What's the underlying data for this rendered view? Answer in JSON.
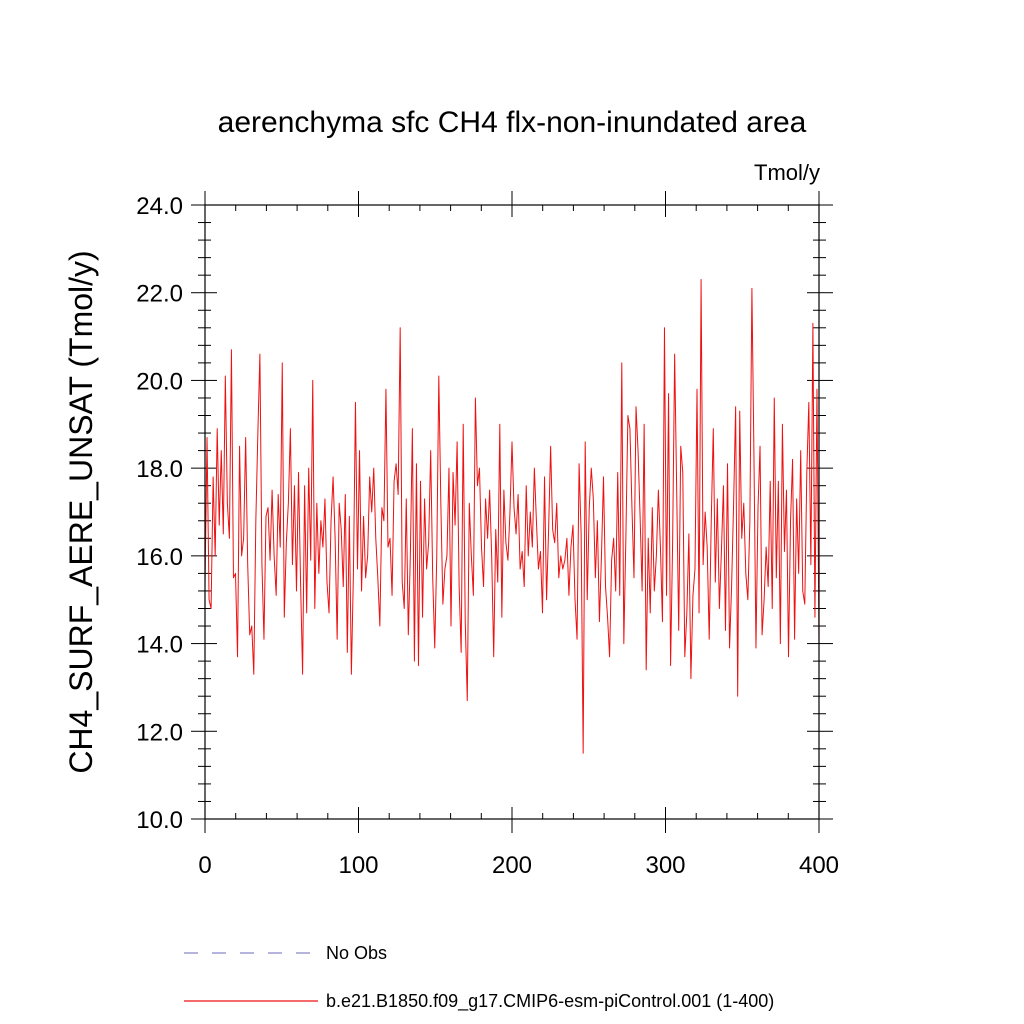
{
  "chart_data": {
    "type": "line",
    "title": "aerenchyma sfc CH4 flx-non-inundated area",
    "units_label": "Tmol/y",
    "ylabel": "CH4_SURF_AERE_UNSAT  (Tmol/y)",
    "xlabel": "",
    "xlim": [
      0,
      400
    ],
    "ylim": [
      10,
      24
    ],
    "x_ticks": [
      "0",
      "100",
      "200",
      "300",
      "400"
    ],
    "y_ticks": [
      "10.0",
      "12.0",
      "14.0",
      "16.0",
      "18.0",
      "20.0",
      "22.0",
      "24.0"
    ],
    "grid": false,
    "legend_placement": "bottom",
    "colors": {
      "model": "#ee1111",
      "obs": "#8888cc",
      "axis": "#000000"
    },
    "series": [
      {
        "name": "b.e21.B1850.f09_g17.CMIP6-esm-piControl.001 (1-400)",
        "style": "solid",
        "values": [
          15.3,
          18.7,
          15.0,
          14.8,
          17.8,
          16.0,
          18.9,
          16.7,
          18.4,
          16.5,
          20.1,
          17.2,
          16.4,
          20.7,
          15.5,
          15.6,
          13.7,
          18.5,
          16.0,
          16.4,
          18.7,
          15.8,
          14.2,
          14.4,
          13.3,
          16.8,
          18.8,
          20.6,
          15.8,
          14.1,
          16.9,
          17.1,
          15.9,
          17.5,
          16.0,
          15.1,
          17.4,
          16.2,
          20.4,
          14.6,
          16.3,
          17.2,
          18.9,
          15.8,
          17.6,
          15.2,
          17.9,
          15.4,
          13.3,
          17.6,
          14.7,
          18.0,
          15.9,
          20.0,
          14.8,
          17.2,
          15.6,
          16.8,
          16.2,
          17.3,
          15.4,
          14.7,
          16.8,
          17.8,
          16.4,
          14.1,
          17.2,
          16.6,
          15.3,
          17.4,
          13.8,
          16.9,
          13.3,
          15.6,
          19.5,
          15.7,
          18.4,
          15.2,
          16.9,
          15.5,
          16.0,
          17.8,
          17.0,
          18.0,
          16.4,
          15.5,
          14.4,
          17.1,
          16.8,
          19.8,
          16.2,
          16.4,
          15.1,
          17.7,
          18.1,
          17.4,
          21.2,
          15.4,
          14.8,
          17.3,
          14.2,
          16.0,
          18.9,
          13.6,
          18.1,
          13.5,
          17.7,
          14.6,
          17.3,
          15.7,
          16.3,
          18.4,
          15.5,
          13.9,
          16.0,
          20.1,
          17.2,
          14.9,
          15.7,
          16.0,
          18.0,
          14.4,
          17.9,
          16.7,
          18.6,
          15.3,
          13.8,
          19.0,
          14.5,
          12.7,
          17.2,
          16.0,
          15.1,
          19.6,
          17.6,
          18.0,
          16.2,
          15.3,
          17.3,
          16.4,
          17.5,
          16.0,
          13.7,
          16.6,
          15.4,
          19.0,
          14.6,
          17.5,
          16.3,
          15.9,
          17.0,
          18.6,
          17.1,
          16.5,
          17.4,
          15.7,
          16.1,
          15.3,
          17.6,
          16.0,
          17.0,
          16.2,
          18.0,
          16.8,
          15.7,
          16.1,
          14.7,
          17.8,
          15.0,
          16.6,
          18.5,
          16.6,
          16.3,
          17.2,
          15.5,
          16.0,
          15.7,
          15.9,
          16.4,
          15.1,
          16.2,
          16.7,
          15.0,
          14.1,
          18.1,
          16.5,
          11.5,
          18.6,
          15.0,
          17.1,
          18.0,
          17.3,
          15.5,
          16.8,
          14.5,
          16.0,
          17.8,
          15.3,
          14.6,
          13.7,
          15.9,
          16.4,
          15.2,
          17.9,
          15.1,
          20.4,
          14.0,
          16.4,
          19.2,
          18.9,
          17.1,
          15.5,
          19.4,
          18.4,
          16.9,
          15.2,
          19.0,
          13.4,
          16.4,
          14.7,
          17.1,
          15.2,
          16.0,
          17.5,
          16.2,
          14.5,
          21.2,
          15.1,
          19.7,
          13.5,
          16.3,
          20.6,
          17.5,
          14.3,
          18.5,
          17.9,
          13.7,
          14.7,
          16.5,
          13.2,
          15.1,
          15.7,
          19.8,
          14.7,
          22.3,
          15.8,
          17.0,
          16.2,
          14.1,
          16.8,
          18.9,
          15.4,
          17.3,
          14.8,
          16.1,
          17.6,
          14.3,
          18.1,
          13.9,
          15.3,
          17.2,
          19.4,
          12.8,
          19.3,
          16.4,
          17.2,
          15.6,
          15.0,
          16.8,
          22.1,
          18.3,
          13.9,
          17.1,
          18.5,
          14.2,
          15.0,
          16.2,
          15.3,
          17.7,
          14.8,
          19.6,
          15.5,
          17.7,
          14.0,
          19.0,
          16.1,
          17.5,
          13.7,
          16.8,
          18.2,
          14.1,
          17.3,
          15.6,
          18.4,
          15.2,
          14.9,
          17.9,
          19.5,
          15.8,
          21.3,
          14.6,
          19.8,
          14.0
        ]
      }
    ],
    "legend": [
      {
        "label": "No Obs",
        "style": "dashed",
        "color": "#8888cc"
      },
      {
        "label": "b.e21.B1850.f09_g17.CMIP6-esm-piControl.001 (1-400)",
        "style": "solid",
        "color": "#ee1111"
      }
    ]
  }
}
